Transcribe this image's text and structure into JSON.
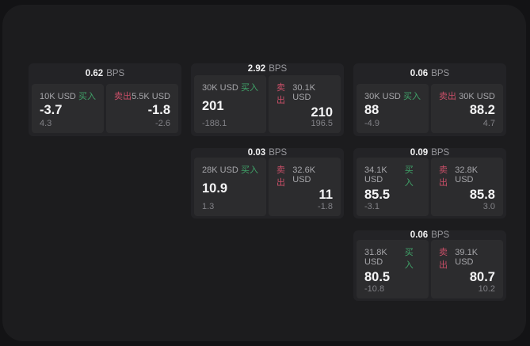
{
  "theme": {
    "bg_outer": "#131315",
    "bg_window": "#1c1c1e",
    "bg_card": "#232326",
    "bg_panel": "#2c2c2e",
    "color_buy": "#40a369",
    "color_sell": "#ca4f68",
    "color_text": "#f5f5f6",
    "color_muted": "#98989d"
  },
  "labels": {
    "buy": "买入",
    "sell": "卖出",
    "bps": "BPS"
  },
  "cards": [
    {
      "col": 1,
      "row": 1,
      "bps": "0.62",
      "buy": {
        "amount": "10K USD",
        "price": "-3.7",
        "delta": "4.3"
      },
      "sell": {
        "amount": "5.5K USD",
        "price": "-1.8",
        "delta": "-2.6"
      }
    },
    {
      "col": 2,
      "row": 1,
      "bps": "2.92",
      "buy": {
        "amount": "30K USD",
        "price": "201",
        "delta": "-188.1"
      },
      "sell": {
        "amount": "30.1K USD",
        "price": "210",
        "delta": "196.5"
      }
    },
    {
      "col": 3,
      "row": 1,
      "bps": "0.06",
      "buy": {
        "amount": "30K USD",
        "price": "88",
        "delta": "-4.9"
      },
      "sell": {
        "amount": "30K USD",
        "price": "88.2",
        "delta": "4.7"
      }
    },
    {
      "col": 2,
      "row": 2,
      "bps": "0.03",
      "buy": {
        "amount": "28K USD",
        "price": "10.9",
        "delta": "1.3"
      },
      "sell": {
        "amount": "32.6K USD",
        "price": "11",
        "delta": "-1.8"
      }
    },
    {
      "col": 3,
      "row": 2,
      "bps": "0.09",
      "buy": {
        "amount": "34.1K USD",
        "price": "85.5",
        "delta": "-3.1"
      },
      "sell": {
        "amount": "32.8K USD",
        "price": "85.8",
        "delta": "3.0"
      }
    },
    {
      "col": 3,
      "row": 3,
      "bps": "0.06",
      "buy": {
        "amount": "31.8K USD",
        "price": "80.5",
        "delta": "-10.8"
      },
      "sell": {
        "amount": "39.1K USD",
        "price": "80.7",
        "delta": "10.2"
      }
    }
  ]
}
